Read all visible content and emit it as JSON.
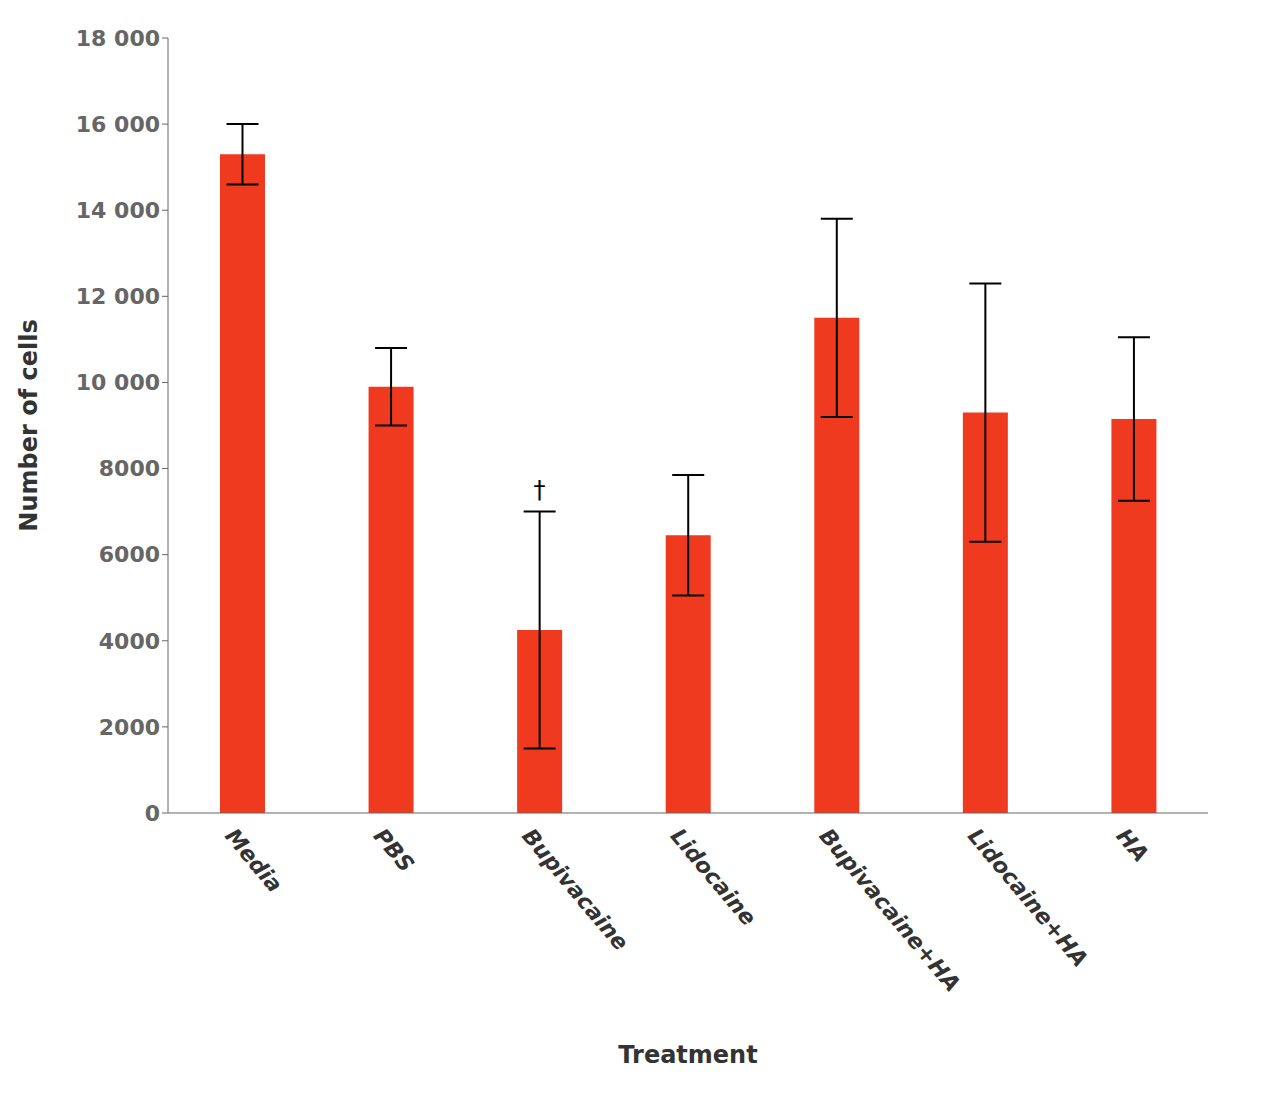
{
  "chart_data": {
    "type": "bar",
    "categories": [
      "Media",
      "PBS",
      "Bupivacaine",
      "Lidocaine",
      "Bupivacaine+HA",
      "Lidocaine+HA",
      "HA"
    ],
    "values": [
      15300,
      9900,
      4250,
      6450,
      11500,
      9300,
      9150
    ],
    "errors": [
      700,
      900,
      2750,
      1400,
      2300,
      3000,
      1900
    ],
    "color": "#F03A1F",
    "xlabel": "Treatment",
    "ylabel": "Number of cells",
    "ylim": [
      0,
      18000
    ],
    "yticks": [
      0,
      2000,
      4000,
      6000,
      8000,
      {
        "value": 10000,
        "label": "10 000"
      },
      {
        "value": 12000,
        "label": "12 000"
      },
      {
        "value": 14000,
        "label": "14 000"
      },
      {
        "value": 16000,
        "label": "16 000"
      },
      {
        "value": 18000,
        "label": "18 000"
      }
    ],
    "annotations": [
      {
        "text": "†",
        "category": "Bupivacaine"
      }
    ],
    "grid": false
  }
}
